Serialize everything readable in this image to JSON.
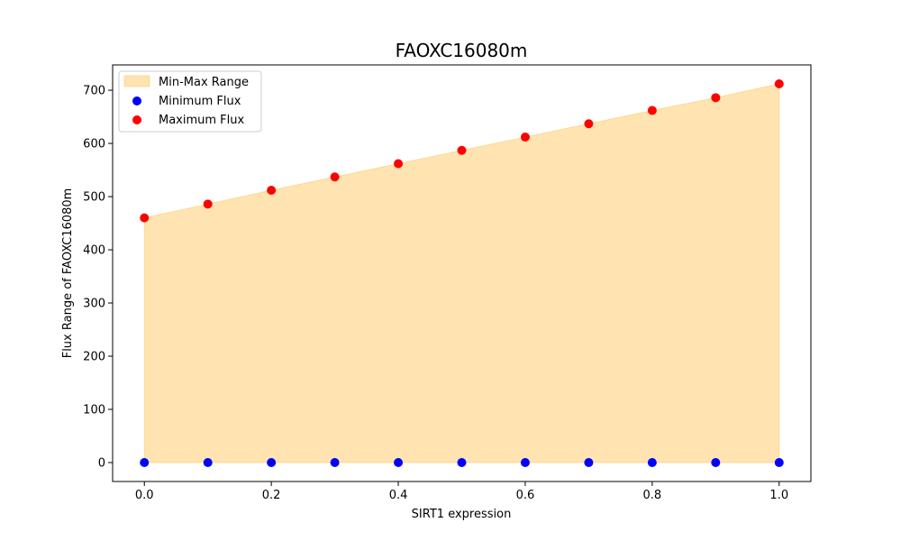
{
  "chart_data": {
    "type": "scatter",
    "title": "FAOXC16080m",
    "xlabel": "SIRT1 expression",
    "ylabel": "Flux Range of FAOXC16080m",
    "x": [
      0.0,
      0.1,
      0.2,
      0.3,
      0.4,
      0.5,
      0.6,
      0.7,
      0.8,
      0.9,
      1.0
    ],
    "series": [
      {
        "name": "Minimum Flux",
        "color": "#0000ff",
        "values": [
          0,
          0,
          0,
          0,
          0,
          0,
          0,
          0,
          0,
          0,
          0
        ]
      },
      {
        "name": "Maximum Flux",
        "color": "#ff0000",
        "values": [
          460,
          486,
          512,
          537,
          562,
          587,
          612,
          637,
          662,
          686,
          712
        ]
      }
    ],
    "fill": {
      "name": "Min-Max Range",
      "color": "#ffa500",
      "alpha": 0.3
    },
    "xlim": [
      -0.05,
      1.05
    ],
    "ylim": [
      -35.6,
      747.6
    ],
    "xticks": [
      0.0,
      0.2,
      0.4,
      0.6,
      0.8,
      1.0
    ],
    "xtick_labels": [
      "0.0",
      "0.2",
      "0.4",
      "0.6",
      "0.8",
      "1.0"
    ],
    "yticks": [
      0,
      100,
      200,
      300,
      400,
      500,
      600,
      700
    ],
    "ytick_labels": [
      "0",
      "100",
      "200",
      "300",
      "400",
      "500",
      "600",
      "700"
    ],
    "grid": false,
    "legend_position": "top-left"
  }
}
